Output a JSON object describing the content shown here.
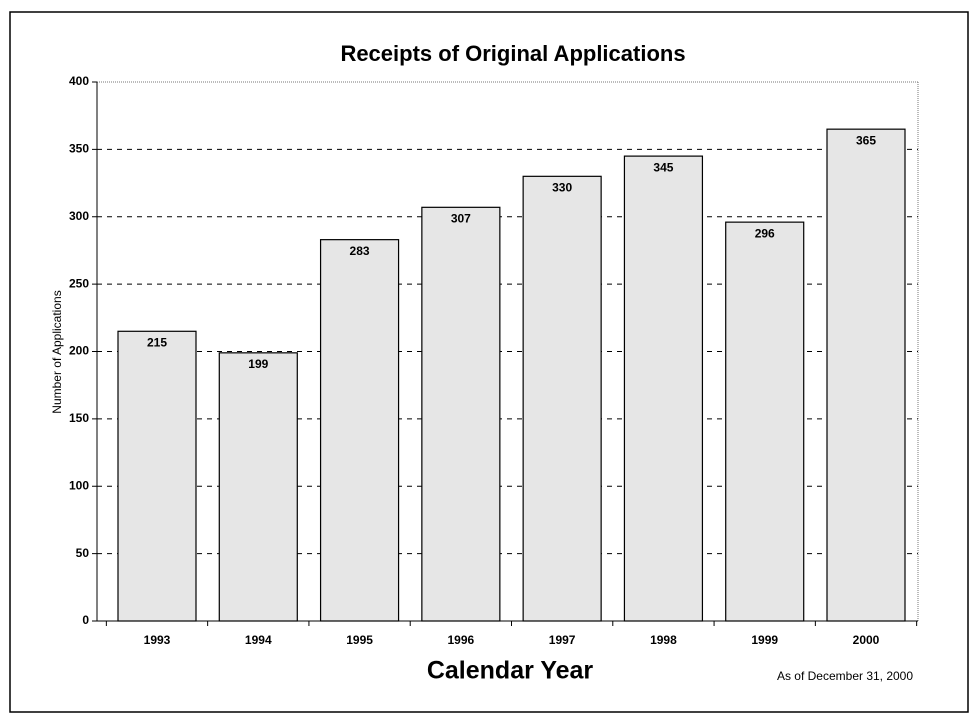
{
  "chart_data": {
    "type": "bar",
    "title": "Receipts of Original Applications",
    "x_label": "Calendar Year",
    "y_label": "Number of Applications",
    "note": "As of December 31, 2000",
    "categories": [
      "1993",
      "1994",
      "1995",
      "1996",
      "1997",
      "1998",
      "1999",
      "2000"
    ],
    "values": [
      215,
      199,
      283,
      307,
      330,
      345,
      296,
      365
    ],
    "color": "#e6e6e6",
    "ylim": [
      0,
      400
    ],
    "yticks": [
      0,
      50,
      100,
      150,
      200,
      250,
      300,
      350,
      400
    ],
    "grid": true
  }
}
